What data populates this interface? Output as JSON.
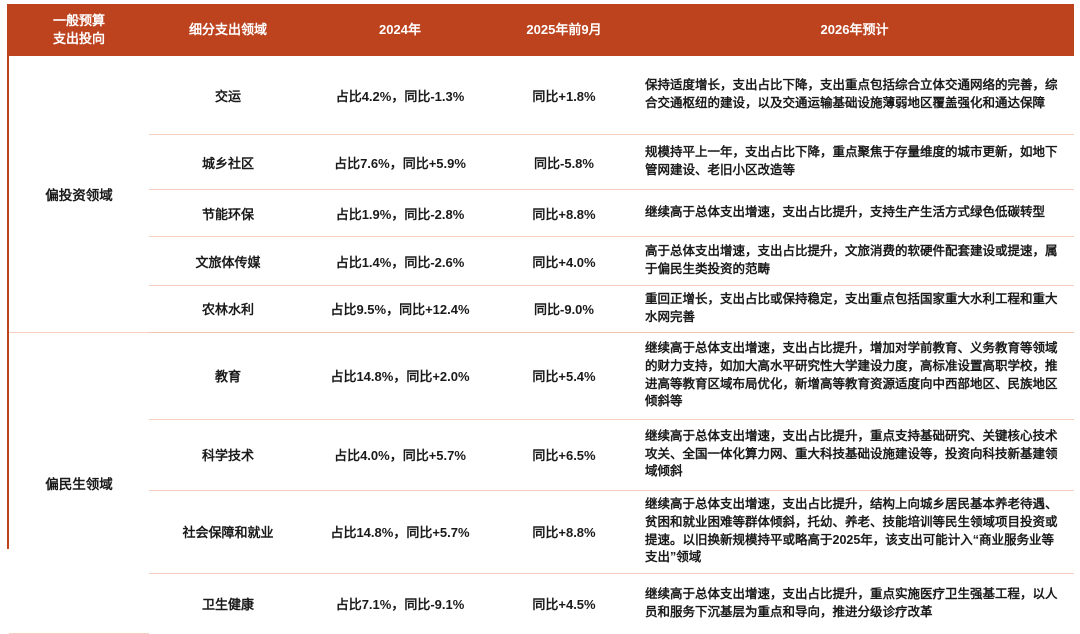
{
  "accent_color": "#bd431f",
  "separator_color": "#f5cfc0",
  "bottom_border_color": "#d94f1e",
  "table": {
    "headers": {
      "col1_line1": "一般预算",
      "col1_line2": "支出投向",
      "col2": "细分支出领域",
      "col3": "2024年",
      "col4": "2025年前9月",
      "col5": "2026年预计"
    },
    "groups": [
      {
        "label": "偏投资领域",
        "rowspan": 5
      },
      {
        "label": "偏民生领域",
        "rowspan": 4
      }
    ],
    "rows": [
      {
        "field": "交运",
        "y2024": "占比4.2%，同比-1.3%",
        "y2025": "同比+1.8%",
        "y2026": "保持适度增长，支出占比下降，支出重点包括综合立体交通网络的完善，综合交通枢纽的建设，以及交通运输基础设施薄弱地区覆盖强化和通达保障"
      },
      {
        "field": "城乡社区",
        "y2024": "占比7.6%，同比+5.9%",
        "y2025": "同比-5.8%",
        "y2026": "规模持平上一年，支出占比下降，重点聚焦于存量维度的城市更新，如地下管网建设、老旧小区改造等"
      },
      {
        "field": "节能环保",
        "y2024": "占比1.9%，同比-2.8%",
        "y2025": "同比+8.8%",
        "y2026": "继续高于总体支出增速，支出占比提升，支持生产生活方式绿色低碳转型"
      },
      {
        "field": "文旅体传媒",
        "y2024": "占比1.4%，同比-2.6%",
        "y2025": "同比+4.0%",
        "y2026": "高于总体支出增速，支出占比提升，文旅消费的软硬件配套建设或提速，属于偏民生类投资的范畴"
      },
      {
        "field": "农林水利",
        "y2024": "占比9.5%，同比+12.4%",
        "y2025": "同比-9.0%",
        "y2026": "重回正增长，支出占比或保持稳定，支出重点包括国家重大水利工程和重大水网完善"
      },
      {
        "field": "教育",
        "y2024": "占比14.8%，同比+2.0%",
        "y2025": "同比+5.4%",
        "y2026": "继续高于总体支出增速，支出占比提升，增加对学前教育、义务教育等领域的财力支持，如加大高水平研究性大学建设力度，高标准设置高职学校，推进高等教育区域布局优化，新增高等教育资源适度向中西部地区、民族地区倾斜等"
      },
      {
        "field": "科学技术",
        "y2024": "占比4.0%，同比+5.7%",
        "y2025": "同比+6.5%",
        "y2026": "继续高于总体支出增速，支出占比提升，重点支持基础研究、关键核心技术攻关、全国一体化算力网、重大科技基础设施建设等，投资向科技新基建领域倾斜"
      },
      {
        "field": "社会保障和就业",
        "y2024": "占比14.8%，同比+5.7%",
        "y2025": "同比+8.8%",
        "y2026": "继续高于总体支出增速，支出占比提升，结构上向城乡居民基本养老待遇、贫困和就业困难等群体倾斜，托幼、养老、技能培训等民生领域项目投资或提速。以旧换新规模持平或略高于2025年，该支出可能计入“商业服务业等支出”领域"
      },
      {
        "field": "卫生健康",
        "y2024": "占比7.1%，同比-9.1%",
        "y2025": "同比+4.5%",
        "y2026": "继续高于总体支出增速，支出占比提升，重点实施医疗卫生强基工程，以人员和服务下沉基层为重点和导向，推进分级诊疗改革"
      }
    ]
  }
}
